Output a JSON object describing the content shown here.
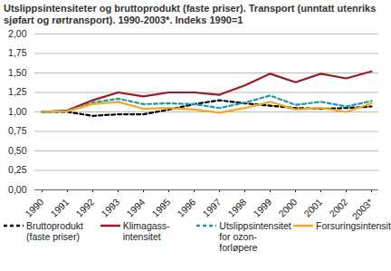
{
  "chart_data": {
    "type": "line",
    "title": "Utslippsintensiteter og bruttoprodukt (faste priser). Transport (unntatt utenriks sjøfart og rørtransport). 1990-2003*. Indeks 1990=1",
    "categories": [
      "1990",
      "1991",
      "1992",
      "1993",
      "1994",
      "1995",
      "1996",
      "1997",
      "1998",
      "1999",
      "2000",
      "2001",
      "2002",
      "2003*"
    ],
    "series": [
      {
        "name": "Bruttoprodukt (faste priser)",
        "color": "#000000",
        "line_style": "dashed",
        "values": [
          1.0,
          1.0,
          0.95,
          0.97,
          0.97,
          1.03,
          1.1,
          1.15,
          1.11,
          1.08,
          1.05,
          1.04,
          1.05,
          1.07
        ]
      },
      {
        "name": "Klimagass-intensitet",
        "color": "#9b1b1e",
        "line_style": "solid",
        "values": [
          1.0,
          1.02,
          1.15,
          1.25,
          1.2,
          1.25,
          1.25,
          1.22,
          1.34,
          1.49,
          1.38,
          1.49,
          1.43,
          1.52
        ]
      },
      {
        "name": "Utslippsintensitet for ozon-forløpere",
        "color": "#1a9bab",
        "line_style": "dashed",
        "values": [
          1.0,
          1.01,
          1.12,
          1.17,
          1.1,
          1.11,
          1.1,
          1.05,
          1.12,
          1.21,
          1.09,
          1.13,
          1.07,
          1.14
        ]
      },
      {
        "name": "Forsuringsintensitet",
        "color": "#f5a623",
        "line_style": "solid",
        "values": [
          1.0,
          1.01,
          1.1,
          1.13,
          1.04,
          1.05,
          1.03,
          0.99,
          1.05,
          1.13,
          1.03,
          1.05,
          1.0,
          1.11
        ]
      }
    ],
    "ylim": [
      0,
      2
    ],
    "yticks": [
      {
        "value": 0,
        "label": "0,00"
      },
      {
        "value": 0.25,
        "label": "0,25"
      },
      {
        "value": 0.5,
        "label": "0,50"
      },
      {
        "value": 0.75,
        "label": "0,75"
      },
      {
        "value": 1,
        "label": "1,00"
      },
      {
        "value": 1.25,
        "label": "1,25"
      },
      {
        "value": 1.5,
        "label": "1,50"
      },
      {
        "value": 1.75,
        "label": "1,75"
      },
      {
        "value": 2,
        "label": "2,00"
      }
    ],
    "grid": true,
    "legend": "bottom"
  }
}
